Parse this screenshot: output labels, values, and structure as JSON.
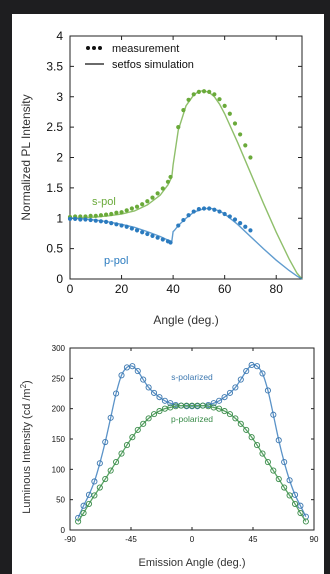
{
  "page": {
    "background_color": "#1e1e20",
    "panel_color": "#ffffff"
  },
  "chart_data": [
    {
      "type": "line",
      "title": "",
      "xlabel": "Angle (deg.)",
      "ylabel": "Normalized PL Intensity",
      "xlim": [
        0,
        90
      ],
      "ylim": [
        0,
        4
      ],
      "xticks": [
        "0",
        "20",
        "40",
        "60",
        "80"
      ],
      "yticks": [
        "0",
        "0.5",
        "1",
        "1.5",
        "2",
        "2.5",
        "3",
        "3.5",
        "4"
      ],
      "grid": false,
      "legend": {
        "placement": "top-right",
        "entries": [
          {
            "marker": "dots",
            "label": "measurement"
          },
          {
            "marker": "line",
            "label": "setfos simulation"
          }
        ]
      },
      "series": [
        {
          "name": "s-pol",
          "color": "#6aaa3a",
          "simulation": {
            "x": [
              0,
              5,
              10,
              15,
              20,
              25,
              30,
              35,
              38,
              39.5,
              40,
              40.5,
              42,
              45,
              48,
              50,
              52,
              54,
              56,
              58,
              60,
              65,
              70,
              75,
              80,
              85,
              88,
              90
            ],
            "y": [
              1.0,
              1.01,
              1.02,
              1.04,
              1.07,
              1.12,
              1.22,
              1.38,
              1.55,
              1.68,
              1.88,
              2.02,
              2.45,
              2.85,
              3.03,
              3.09,
              3.1,
              3.07,
              3.0,
              2.88,
              2.72,
              2.25,
              1.75,
              1.25,
              0.77,
              0.33,
              0.1,
              0.0
            ]
          },
          "measurement": {
            "x": [
              0,
              2,
              4,
              6,
              8,
              10,
              12,
              14,
              16,
              18,
              20,
              22,
              24,
              26,
              28,
              30,
              32,
              34,
              36,
              38,
              39,
              42,
              44,
              46,
              48,
              50,
              52,
              54,
              56,
              58,
              60,
              62,
              64,
              66,
              68,
              70
            ],
            "y": [
              1.02,
              1.03,
              1.03,
              1.03,
              1.04,
              1.04,
              1.05,
              1.06,
              1.07,
              1.09,
              1.1,
              1.13,
              1.16,
              1.19,
              1.23,
              1.28,
              1.34,
              1.41,
              1.49,
              1.6,
              1.68,
              2.5,
              2.78,
              2.95,
              3.04,
              3.08,
              3.09,
              3.08,
              3.04,
              2.96,
              2.85,
              2.72,
              2.56,
              2.38,
              2.2,
              2.0
            ]
          }
        },
        {
          "name": "p-pol",
          "color": "#2b7bbf",
          "simulation": {
            "x": [
              0,
              5,
              10,
              15,
              20,
              25,
              30,
              35,
              38,
              39.5,
              40,
              40.5,
              42,
              45,
              48,
              52,
              55,
              58,
              60,
              65,
              70,
              75,
              80,
              85,
              88,
              90
            ],
            "y": [
              1.0,
              0.99,
              0.97,
              0.94,
              0.9,
              0.85,
              0.78,
              0.7,
              0.64,
              0.62,
              0.78,
              0.8,
              0.88,
              1.0,
              1.1,
              1.16,
              1.16,
              1.12,
              1.07,
              0.9,
              0.7,
              0.5,
              0.31,
              0.14,
              0.05,
              0.0
            ]
          },
          "measurement": {
            "x": [
              0,
              2,
              4,
              6,
              8,
              10,
              12,
              14,
              16,
              18,
              20,
              22,
              24,
              26,
              28,
              30,
              32,
              34,
              36,
              38,
              39,
              42,
              44,
              46,
              48,
              50,
              52,
              54,
              56,
              58,
              60,
              62,
              64,
              66,
              68,
              70
            ],
            "y": [
              0.99,
              0.99,
              0.98,
              0.98,
              0.97,
              0.96,
              0.95,
              0.94,
              0.92,
              0.9,
              0.88,
              0.86,
              0.83,
              0.8,
              0.77,
              0.74,
              0.71,
              0.68,
              0.65,
              0.62,
              0.6,
              0.88,
              0.97,
              1.05,
              1.11,
              1.15,
              1.16,
              1.16,
              1.14,
              1.11,
              1.07,
              1.03,
              0.98,
              0.92,
              0.86,
              0.8
            ]
          }
        }
      ]
    },
    {
      "type": "line",
      "title": "",
      "xlabel": "Emission Angle (deg.)",
      "ylabel": "Luminous Intensity (cd /m",
      "ylabel_superscript": "2",
      "ylabel_suffix": ")",
      "xlim": [
        -90,
        90
      ],
      "ylim": [
        0,
        300
      ],
      "xticks": [
        "-90",
        "-45",
        "0",
        "45",
        "90"
      ],
      "yticks": [
        "0",
        "50",
        "100",
        "150",
        "200",
        "250",
        "300"
      ],
      "grid": false,
      "series": [
        {
          "name": "s-polarized",
          "color": "#5b93c8",
          "marker_color": "#3d78b0",
          "x": [
            -84,
            -80,
            -76,
            -72,
            -68,
            -64,
            -60,
            -56,
            -52,
            -48,
            -44,
            -40,
            -36,
            -32,
            -28,
            -24,
            -20,
            -16,
            -12,
            -8,
            -4,
            0,
            4,
            8,
            12,
            16,
            20,
            24,
            28,
            32,
            36,
            40,
            44,
            48,
            52,
            56,
            60,
            64,
            68,
            72,
            76,
            80,
            84
          ],
          "y": [
            20,
            40,
            58,
            80,
            110,
            145,
            185,
            225,
            255,
            268,
            270,
            262,
            248,
            235,
            226,
            219,
            213,
            209,
            206,
            205,
            204,
            204,
            204,
            205,
            206,
            209,
            213,
            219,
            226,
            235,
            248,
            262,
            272,
            270,
            258,
            230,
            190,
            148,
            112,
            82,
            58,
            40,
            22
          ]
        },
        {
          "name": "p-polarized",
          "color": "#5aa465",
          "marker_color": "#3a8c4a",
          "x": [
            -84,
            -80,
            -76,
            -72,
            -68,
            -64,
            -60,
            -56,
            -52,
            -48,
            -44,
            -40,
            -36,
            -32,
            -28,
            -24,
            -20,
            -16,
            -12,
            -8,
            -4,
            0,
            4,
            8,
            12,
            16,
            20,
            24,
            28,
            32,
            36,
            40,
            44,
            48,
            52,
            56,
            60,
            64,
            68,
            72,
            76,
            80,
            84
          ],
          "y": [
            14,
            28,
            43,
            57,
            70,
            84,
            98,
            112,
            126,
            140,
            153,
            165,
            175,
            184,
            191,
            196,
            200,
            202,
            204,
            205,
            205,
            205,
            205,
            205,
            204,
            202,
            200,
            196,
            191,
            184,
            175,
            165,
            153,
            140,
            126,
            112,
            98,
            84,
            70,
            57,
            43,
            28,
            14
          ]
        }
      ]
    }
  ]
}
